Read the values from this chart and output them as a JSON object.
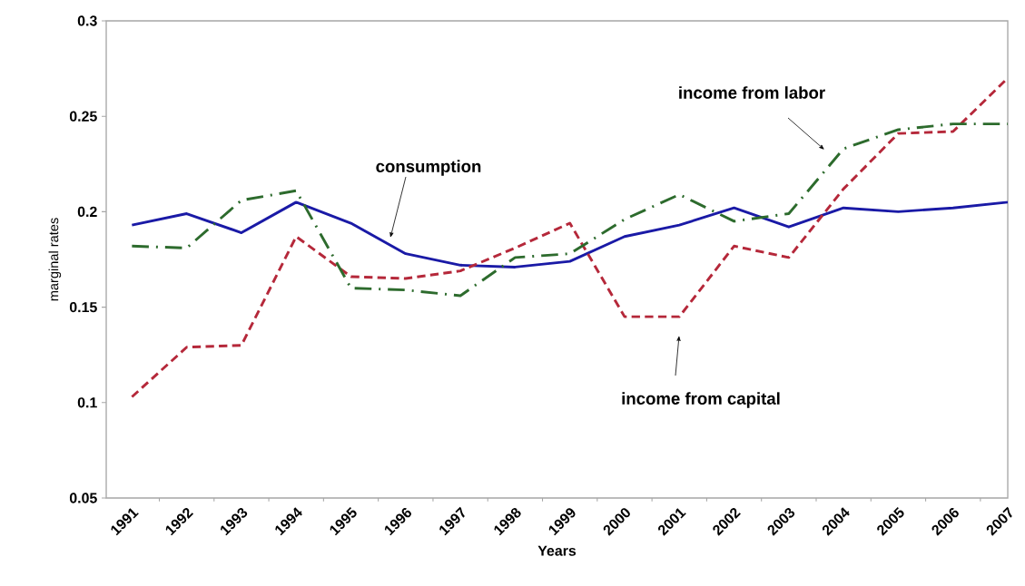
{
  "chart_data": {
    "type": "line",
    "xlabel": "Years",
    "ylabel": "marginal rates",
    "categories": [
      "1991",
      "1992",
      "1993",
      "1994",
      "1995",
      "1996",
      "1997",
      "1998",
      "1999",
      "2000",
      "2001",
      "2002",
      "2003",
      "2004",
      "2005",
      "2006",
      "2007"
    ],
    "series": [
      {
        "color": "#1a1aa6",
        "line_style": "solid",
        "values": [
          0.193,
          0.199,
          0.189,
          0.205,
          0.194,
          0.178,
          0.172,
          0.171,
          0.174,
          0.187,
          0.193,
          0.202,
          0.192,
          0.202,
          0.2,
          0.202,
          0.205
        ]
      },
      {
        "color": "#b5283a",
        "line_style": "dashed",
        "values": [
          0.103,
          0.129,
          0.13,
          0.187,
          0.166,
          0.165,
          0.169,
          0.181,
          0.194,
          0.145,
          0.145,
          0.182,
          0.176,
          0.212,
          0.241,
          0.242,
          0.27
        ]
      },
      {
        "color": "#2d6b2d",
        "line_style": "dashdot",
        "values": [
          0.182,
          0.181,
          0.206,
          0.211,
          0.16,
          0.159,
          0.156,
          0.176,
          0.178,
          0.196,
          0.209,
          0.195,
          0.199,
          0.233,
          0.243,
          0.246,
          0.246
        ]
      }
    ],
    "ylim": [
      0.05,
      0.3
    ],
    "yticks": [
      0.05,
      0.1,
      0.15,
      0.2,
      0.25,
      0.3
    ],
    "grid": false,
    "marker": "none",
    "annotations": [
      "consumption",
      "income from labor",
      "income from capital"
    ]
  }
}
